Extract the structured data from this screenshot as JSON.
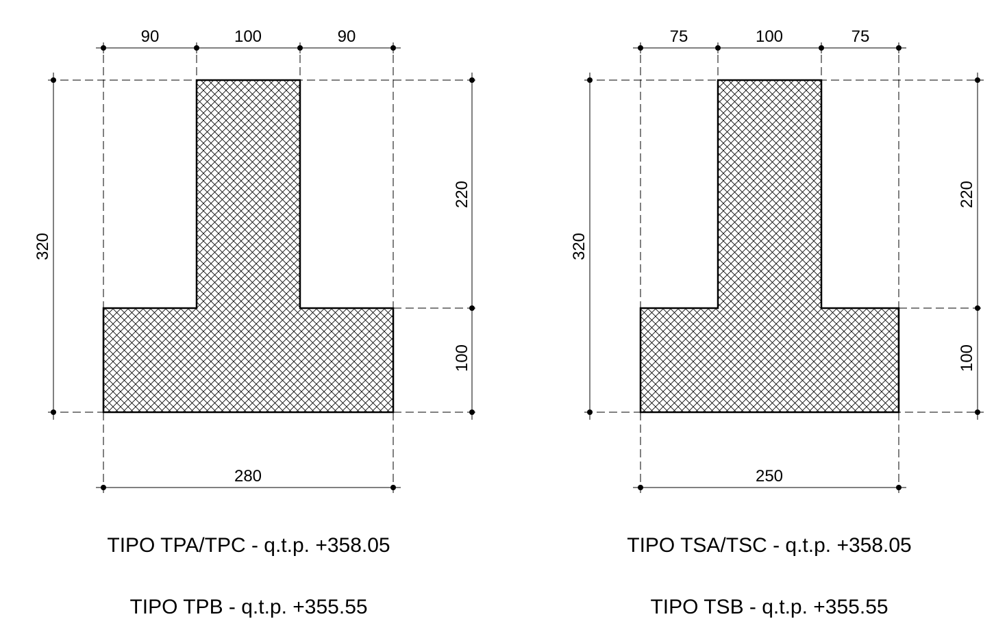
{
  "sections": [
    {
      "id": "tp",
      "top_dims": [
        "90",
        "100",
        "90"
      ],
      "bottom_dim": "280",
      "left_dim": "320",
      "right_dims": [
        "220",
        "100"
      ],
      "captions": [
        "TIPO TPA/TPC - q.t.p. +358.05",
        "TIPO TPB - q.t.p. +355.55"
      ]
    },
    {
      "id": "ts",
      "top_dims": [
        "75",
        "100",
        "75"
      ],
      "bottom_dim": "250",
      "left_dim": "320",
      "right_dims": [
        "220",
        "100"
      ],
      "captions": [
        "TIPO TSA/TSC - q.t.p. +358.05",
        "TIPO TSB - q.t.p. +355.55"
      ]
    }
  ],
  "colors": {
    "line": "#000000",
    "hatch": "#000000",
    "background": "#ffffff"
  }
}
